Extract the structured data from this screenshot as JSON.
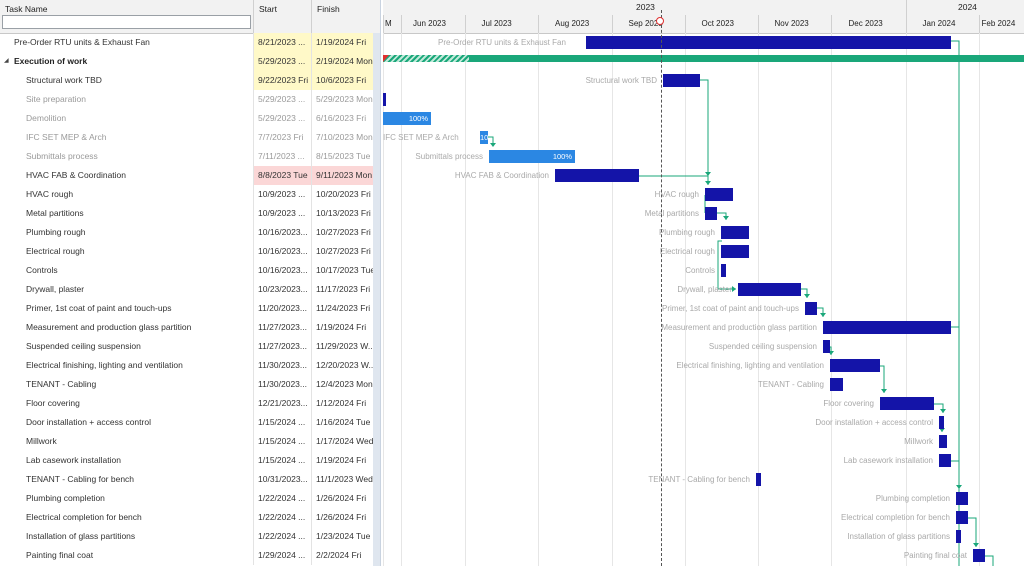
{
  "grid": {
    "columns": {
      "name": "Task Name",
      "start": "Start",
      "finish": "Finish"
    },
    "filter_value": "",
    "rows": [
      {
        "name": "Pre-Order RTU units & Exhaust Fan",
        "start": "8/21/2023 ...",
        "finish": "1/19/2024 Fri",
        "style": "yellow"
      },
      {
        "name": "Execution of work",
        "start": "5/29/2023 ...",
        "finish": "2/19/2024 Mon",
        "style": "yellow-bold"
      },
      {
        "name": "Structural work TBD",
        "start": "9/22/2023 Fri",
        "finish": "10/6/2023 Fri",
        "style": "yellow"
      },
      {
        "name": "Site preparation",
        "start": "5/29/2023 ...",
        "finish": "5/29/2023 Mon",
        "style": "grey"
      },
      {
        "name": "Demolition",
        "start": "5/29/2023 ...",
        "finish": "6/16/2023 Fri",
        "style": "grey"
      },
      {
        "name": "IFC SET MEP & Arch",
        "start": "7/7/2023 Fri",
        "finish": "7/10/2023 Mon",
        "style": "grey"
      },
      {
        "name": "Submittals process",
        "start": "7/11/2023 ...",
        "finish": "8/15/2023 Tue",
        "style": "grey"
      },
      {
        "name": "HVAC FAB & Coordination",
        "start": "8/8/2023 Tue",
        "finish": "9/11/2023 Mon",
        "style": "pink"
      },
      {
        "name": "HVAC rough",
        "start": "10/9/2023 ...",
        "finish": "10/20/2023 Fri",
        "style": ""
      },
      {
        "name": "Metal partitions",
        "start": "10/9/2023 ...",
        "finish": "10/13/2023 Fri",
        "style": ""
      },
      {
        "name": "Plumbing rough",
        "start": "10/16/2023...",
        "finish": "10/27/2023 Fri",
        "style": ""
      },
      {
        "name": "Electrical rough",
        "start": "10/16/2023...",
        "finish": "10/27/2023 Fri",
        "style": ""
      },
      {
        "name": "Controls",
        "start": "10/16/2023...",
        "finish": "10/17/2023 Tue",
        "style": ""
      },
      {
        "name": "Drywall, plaster",
        "start": "10/23/2023...",
        "finish": "11/17/2023 Fri",
        "style": ""
      },
      {
        "name": "Primer, 1st coat of paint and touch-ups",
        "start": "11/20/2023...",
        "finish": "11/24/2023 Fri",
        "style": ""
      },
      {
        "name": "Measurement and production glass partition",
        "start": "11/27/2023...",
        "finish": "1/19/2024 Fri",
        "style": ""
      },
      {
        "name": "Suspended ceiling suspension",
        "start": "11/27/2023...",
        "finish": "11/29/2023 W...",
        "style": ""
      },
      {
        "name": "Electrical finishing, lighting and ventilation",
        "start": "11/30/2023...",
        "finish": "12/20/2023 W...",
        "style": ""
      },
      {
        "name": "TENANT - Cabling",
        "start": "11/30/2023...",
        "finish": "12/4/2023 Mon",
        "style": ""
      },
      {
        "name": "Floor covering",
        "start": "12/21/2023...",
        "finish": "1/12/2024 Fri",
        "style": ""
      },
      {
        "name": "Door installation + access control",
        "start": "1/15/2024 ...",
        "finish": "1/16/2024 Tue",
        "style": ""
      },
      {
        "name": "Millwork",
        "start": "1/15/2024 ...",
        "finish": "1/17/2024 Wed",
        "style": ""
      },
      {
        "name": "Lab casework installation",
        "start": "1/15/2024 ...",
        "finish": "1/19/2024 Fri",
        "style": ""
      },
      {
        "name": "TENANT - Cabling for bench",
        "start": "10/31/2023...",
        "finish": "11/1/2023 Wed",
        "style": ""
      },
      {
        "name": "Plumbing completion",
        "start": "1/22/2024 ...",
        "finish": "1/26/2024 Fri",
        "style": ""
      },
      {
        "name": "Electrical completion for bench",
        "start": "1/22/2024 ...",
        "finish": "1/26/2024 Fri",
        "style": ""
      },
      {
        "name": "Installation of glass partitions",
        "start": "1/22/2024 ...",
        "finish": "1/23/2024 Tue",
        "style": ""
      },
      {
        "name": "Painting final coat",
        "start": "1/29/2024 ...",
        "finish": "2/2/2024 Fri",
        "style": ""
      }
    ]
  },
  "timeline": {
    "years": [
      "2023",
      "2024"
    ],
    "months": [
      "M",
      "Jun 2023",
      "Jul 2023",
      "Aug 2023",
      "Sep 2023",
      "Oct 2023",
      "Nov 2023",
      "Dec 2023",
      "Jan 2024",
      "Feb 2024"
    ],
    "today_date": "9/22/2023"
  },
  "gantt": {
    "bars": [
      {
        "row": 0,
        "label": "Pre-Order RTU units & Exhaust Fan"
      },
      {
        "row": 2,
        "label": "Structural work TBD"
      },
      {
        "row": 3,
        "label": ""
      },
      {
        "row": 4,
        "label": "",
        "progress_text": "100%"
      },
      {
        "row": 5,
        "label": "IFC SET MEP & Arch",
        "progress_text": "10"
      },
      {
        "row": 6,
        "label": "Submittals process",
        "progress_text": "100%"
      },
      {
        "row": 7,
        "label": "HVAC FAB & Coordination"
      },
      {
        "row": 8,
        "label": "HVAC rough"
      },
      {
        "row": 9,
        "label": "Metal partitions"
      },
      {
        "row": 10,
        "label": "Plumbing rough"
      },
      {
        "row": 11,
        "label": "Electrical rough"
      },
      {
        "row": 12,
        "label": "Controls"
      },
      {
        "row": 13,
        "label": "Drywall, plaster"
      },
      {
        "row": 14,
        "label": "Primer, 1st coat of paint and touch-ups"
      },
      {
        "row": 15,
        "label": "Measurement and production glass partition"
      },
      {
        "row": 16,
        "label": "Suspended ceiling suspension"
      },
      {
        "row": 17,
        "label": "Electrical finishing, lighting and ventilation"
      },
      {
        "row": 18,
        "label": "TENANT - Cabling"
      },
      {
        "row": 19,
        "label": "Floor covering"
      },
      {
        "row": 20,
        "label": "Door installation + access control"
      },
      {
        "row": 21,
        "label": "Millwork"
      },
      {
        "row": 22,
        "label": "Lab casework installation"
      },
      {
        "row": 23,
        "label": "TENANT - Cabling for bench"
      },
      {
        "row": 24,
        "label": "Plumbing completion"
      },
      {
        "row": 25,
        "label": "Electrical completion for bench"
      },
      {
        "row": 26,
        "label": "Installation of glass partitions"
      },
      {
        "row": 27,
        "label": "Painting final coat"
      }
    ]
  },
  "colors": {
    "task_bar": "#1414a8",
    "completed_bar": "#2b87e3",
    "summary_bar": "#1aa77a",
    "link": "#1aa77a",
    "today_marker": "#e03030"
  }
}
